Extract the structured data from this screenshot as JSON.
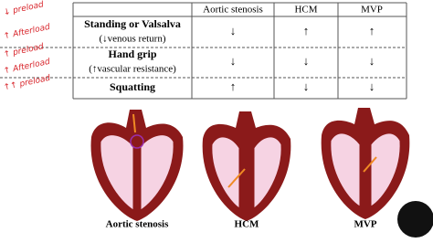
{
  "notes": [
    "↓ preload",
    "↑ Afterload",
    "↑ preload",
    "↑ Afterload",
    "↑↑ preload"
  ],
  "table": {
    "header": [
      "Aortic stenosis",
      "HCM",
      "MVP"
    ],
    "rows": [
      {
        "maneuver": "Standing or Valsalva",
        "detail": "(↓venous return)",
        "cells": [
          "↓",
          "↑",
          "↑"
        ]
      },
      {
        "maneuver": "Hand grip",
        "detail": "(↑vascular resistance)",
        "cells": [
          "↓",
          "↓",
          "↓"
        ]
      },
      {
        "maneuver": "Squatting",
        "detail": null,
        "cells": [
          "↑",
          "↓",
          "↓"
        ]
      }
    ]
  },
  "figures": [
    "Aortic stenosis",
    "HCM",
    "MVP"
  ]
}
